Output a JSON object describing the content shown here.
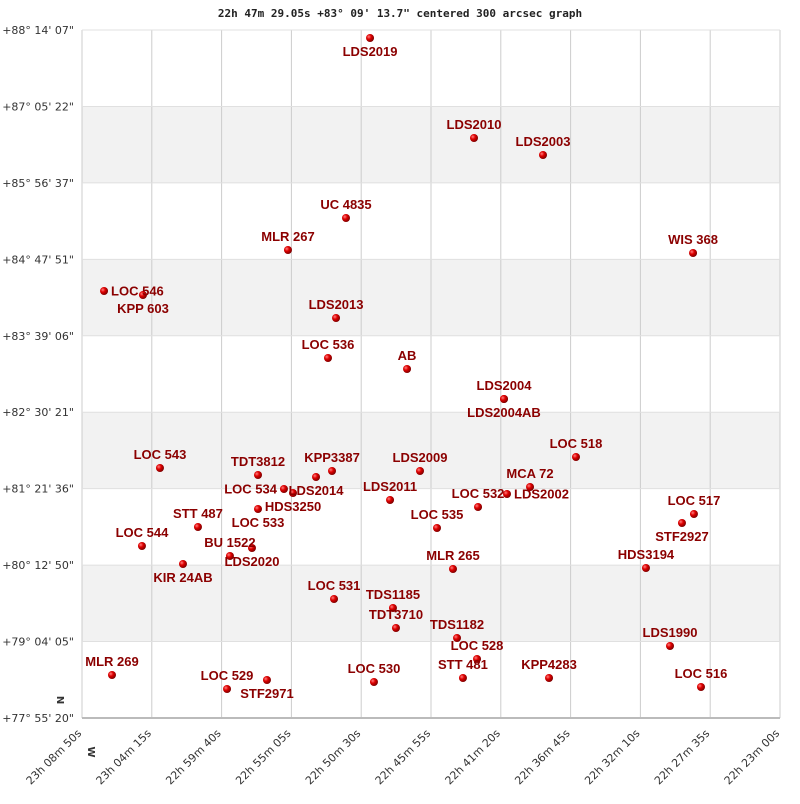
{
  "chart_data": {
    "type": "scatter",
    "title": "22h 47m 29.05s +83° 09' 13.7\" centered 300 arcsec graph",
    "x_unit": "RA (hours)",
    "y_unit": "Dec (degrees)",
    "xlim": [
      23.14722,
      22.38333
    ],
    "ylim": [
      77.9222,
      88.2353
    ],
    "x_tick_labels": [
      "23h 08m 50s",
      "23h 04m 15s",
      "22h 59m 40s",
      "22h 55m 05s",
      "22h 50m 30s",
      "22h 45m 55s",
      "22h 41m 20s",
      "22h 36m 45s",
      "22h 32m 10s",
      "22h 27m 35s",
      "22h 23m 00s"
    ],
    "y_tick_labels": [
      "+88° 14' 07\"",
      "+87° 05' 22\"",
      "+85° 56' 37\"",
      "+84° 47' 51\"",
      "+83° 39' 06\"",
      "+82° 30' 21\"",
      "+81° 21' 36\"",
      "+80° 12' 50\"",
      "+79° 04' 05\"",
      "+77° 55' 20\""
    ],
    "north_label": "N",
    "west_label": "W",
    "grid": true,
    "colors": {
      "point": "#cc0000",
      "label": "#8b0000",
      "band": "#f2f2f2",
      "grid": "#cccccc"
    },
    "points": [
      {
        "name": "LDS2019",
        "ra": 22.832,
        "dec": 88.1154
      },
      {
        "name": "LDS2010",
        "ra": 22.7182,
        "dec": 86.6164
      },
      {
        "name": "LDS2003",
        "ra": 22.6427,
        "dec": 86.3615
      },
      {
        "name": "UC 4835",
        "ra": 22.8583,
        "dec": 85.4172
      },
      {
        "name": "MLR 267",
        "ra": 22.9218,
        "dec": 84.9375
      },
      {
        "name": "WIS 368",
        "ra": 22.4785,
        "dec": 84.8925
      },
      {
        "name": "LOC 546",
        "ra": 23.1231,
        "dec": 84.3229
      },
      {
        "name": "KPP 603",
        "ra": 23.0805,
        "dec": 84.2629
      },
      {
        "name": "LDS2013",
        "ra": 22.8692,
        "dec": 83.9182
      },
      {
        "name": "LOC 536",
        "ra": 22.878,
        "dec": 83.3186
      },
      {
        "name": "AB",
        "ra": 22.7915,
        "dec": 83.1537
      },
      {
        "name": "LDS2004",
        "ra": 22.6854,
        "dec": 82.704
      },
      {
        "name": "LDS2004AB",
        "ra": 22.6854,
        "dec": 82.704
      },
      {
        "name": "LOC 518",
        "ra": 22.6066,
        "dec": 81.8346
      },
      {
        "name": "LOC 543",
        "ra": 23.0619,
        "dec": 81.6697
      },
      {
        "name": "TDT3812",
        "ra": 22.9546,
        "dec": 81.5647
      },
      {
        "name": "KPP3387",
        "ra": 22.8736,
        "dec": 81.6247
      },
      {
        "name": "LDS2014",
        "ra": 22.8911,
        "dec": 81.5347
      },
      {
        "name": "LOC 534",
        "ra": 22.9262,
        "dec": 81.3549
      },
      {
        "name": "HDS3250",
        "ra": 22.9163,
        "dec": 81.2949
      },
      {
        "name": "LOC 533",
        "ra": 22.9546,
        "dec": 81.0551
      },
      {
        "name": "LDS2009",
        "ra": 22.7773,
        "dec": 81.6247
      },
      {
        "name": "LDS2011",
        "ra": 22.8101,
        "dec": 81.19
      },
      {
        "name": "LOC 532",
        "ra": 22.7138,
        "dec": 81.0851
      },
      {
        "name": "LDS2002",
        "ra": 22.6821,
        "dec": 81.2799
      },
      {
        "name": "MCA  72",
        "ra": 22.6569,
        "dec": 81.3849
      },
      {
        "name": "LOC 535",
        "ra": 22.7587,
        "dec": 80.7703
      },
      {
        "name": "MLR 265",
        "ra": 22.7412,
        "dec": 80.1557
      },
      {
        "name": "LDS2020",
        "ra": 22.9612,
        "dec": 80.4705
      },
      {
        "name": "BU 1522",
        "ra": 22.9853,
        "dec": 80.3506
      },
      {
        "name": "STT 487",
        "ra": 23.0203,
        "dec": 80.7853
      },
      {
        "name": "LOC 544",
        "ra": 23.0816,
        "dec": 80.5005
      },
      {
        "name": "KIR  24AB",
        "ra": 23.0367,
        "dec": 80.2306
      },
      {
        "name": "LOC 517",
        "ra": 22.4775,
        "dec": 80.9801
      },
      {
        "name": "STF2927",
        "ra": 22.4906,
        "dec": 80.8452
      },
      {
        "name": "HDS3194",
        "ra": 22.53,
        "dec": 80.1707
      },
      {
        "name": "LOC 531",
        "ra": 22.8714,
        "dec": 79.706
      },
      {
        "name": "TDS1185",
        "ra": 22.8069,
        "dec": 79.5711
      },
      {
        "name": "TDT3710",
        "ra": 22.8036,
        "dec": 79.2713
      },
      {
        "name": "TDS1182",
        "ra": 22.7368,
        "dec": 79.1214
      },
      {
        "name": "LOC 528",
        "ra": 22.7149,
        "dec": 78.8066
      },
      {
        "name": "STT 481",
        "ra": 22.7303,
        "dec": 78.5218
      },
      {
        "name": "LOC 530",
        "ra": 22.8277,
        "dec": 78.4618
      },
      {
        "name": "KPP4283",
        "ra": 22.6361,
        "dec": 78.5218
      },
      {
        "name": "LDS1990",
        "ra": 22.5037,
        "dec": 79.0015
      },
      {
        "name": "LOC 516",
        "ra": 22.4698,
        "dec": 78.3869
      },
      {
        "name": "MLR 269",
        "ra": 23.1144,
        "dec": 78.5667
      },
      {
        "name": "LOC 529",
        "ra": 22.9885,
        "dec": 78.3569
      },
      {
        "name": "STF2971",
        "ra": 22.9448,
        "dec": 78.4918
      }
    ]
  }
}
